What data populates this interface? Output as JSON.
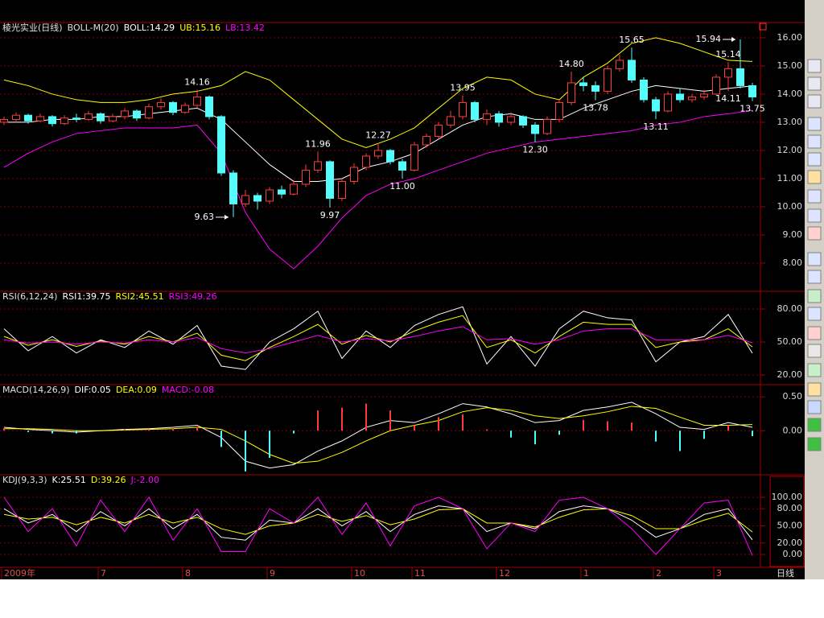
{
  "chart_data": [
    {
      "type": "candlestick",
      "header": [
        "棱光实业(日线)",
        "BOLL-M(20)"
      ],
      "up_color": "#ff3c3c",
      "down_color": "#54fcfc",
      "ohlc": [
        [
          13.0,
          13.2,
          12.9,
          13.1
        ],
        [
          13.1,
          13.35,
          13.0,
          13.25
        ],
        [
          13.25,
          13.3,
          12.95,
          13.05
        ],
        [
          13.05,
          13.3,
          13.0,
          13.2
        ],
        [
          13.2,
          13.25,
          12.85,
          12.95
        ],
        [
          12.95,
          13.25,
          12.9,
          13.15
        ],
        [
          13.15,
          13.3,
          13.0,
          13.1
        ],
        [
          13.1,
          13.4,
          13.05,
          13.3
        ],
        [
          13.3,
          13.35,
          12.95,
          13.05
        ],
        [
          13.05,
          13.3,
          13.0,
          13.2
        ],
        [
          13.2,
          13.5,
          13.1,
          13.4
        ],
        [
          13.4,
          13.45,
          13.05,
          13.15
        ],
        [
          13.15,
          13.65,
          13.1,
          13.55
        ],
        [
          13.55,
          13.85,
          13.45,
          13.7
        ],
        [
          13.7,
          13.75,
          13.25,
          13.35
        ],
        [
          13.35,
          13.7,
          13.3,
          13.6
        ],
        [
          13.6,
          14.16,
          13.5,
          13.9
        ],
        [
          13.9,
          13.95,
          13.1,
          13.2
        ],
        [
          13.2,
          13.25,
          11.1,
          11.2
        ],
        [
          11.2,
          11.3,
          9.63,
          10.1
        ],
        [
          10.1,
          10.6,
          10.0,
          10.4
        ],
        [
          10.4,
          10.5,
          9.9,
          10.2
        ],
        [
          10.2,
          10.7,
          10.1,
          10.6
        ],
        [
          10.6,
          10.75,
          10.3,
          10.45
        ],
        [
          10.45,
          10.95,
          10.4,
          10.8
        ],
        [
          10.8,
          11.5,
          10.7,
          11.3
        ],
        [
          11.3,
          11.96,
          11.2,
          11.6
        ],
        [
          11.6,
          11.65,
          9.97,
          10.3
        ],
        [
          10.3,
          11.0,
          10.2,
          10.9
        ],
        [
          10.9,
          11.55,
          10.8,
          11.4
        ],
        [
          11.4,
          11.9,
          11.3,
          11.8
        ],
        [
          11.8,
          12.27,
          11.7,
          12.0
        ],
        [
          12.0,
          12.05,
          11.5,
          11.6
        ],
        [
          11.6,
          11.7,
          11.0,
          11.3
        ],
        [
          11.3,
          12.3,
          11.25,
          12.2
        ],
        [
          12.2,
          12.6,
          12.1,
          12.5
        ],
        [
          12.5,
          13.0,
          12.4,
          12.9
        ],
        [
          12.9,
          13.4,
          12.8,
          13.2
        ],
        [
          13.2,
          13.95,
          13.1,
          13.7
        ],
        [
          13.7,
          13.75,
          13.0,
          13.1
        ],
        [
          13.1,
          13.45,
          12.9,
          13.3
        ],
        [
          13.3,
          13.4,
          12.85,
          13.0
        ],
        [
          13.0,
          13.35,
          12.9,
          13.2
        ],
        [
          13.2,
          13.25,
          12.8,
          12.9
        ],
        [
          12.9,
          13.0,
          12.3,
          12.6
        ],
        [
          12.6,
          13.2,
          12.55,
          13.1
        ],
        [
          13.1,
          13.8,
          13.0,
          13.7
        ],
        [
          13.7,
          14.8,
          13.6,
          14.4
        ],
        [
          14.4,
          14.6,
          14.1,
          14.3
        ],
        [
          14.3,
          14.45,
          13.78,
          14.1
        ],
        [
          14.1,
          15.0,
          14.0,
          14.9
        ],
        [
          14.9,
          15.4,
          14.8,
          15.2
        ],
        [
          15.2,
          15.65,
          14.4,
          14.5
        ],
        [
          14.5,
          14.6,
          13.7,
          13.8
        ],
        [
          13.8,
          13.9,
          13.11,
          13.4
        ],
        [
          13.4,
          14.1,
          13.35,
          14.0
        ],
        [
          14.0,
          14.2,
          13.7,
          13.8
        ],
        [
          13.8,
          14.0,
          13.7,
          13.9
        ],
        [
          13.9,
          14.15,
          13.8,
          14.0
        ],
        [
          14.0,
          14.7,
          13.95,
          14.6
        ],
        [
          14.6,
          15.14,
          14.11,
          14.9
        ],
        [
          14.9,
          15.94,
          14.2,
          14.3
        ],
        [
          14.3,
          14.4,
          13.75,
          13.9
        ]
      ],
      "x": [
        0,
        2,
        4,
        6,
        8,
        10,
        12,
        14,
        16,
        18,
        20,
        22,
        24,
        26,
        28,
        30,
        32,
        34,
        36,
        38,
        40,
        42,
        44,
        46,
        48,
        50,
        52,
        54,
        56,
        58,
        60,
        62
      ],
      "series": [
        {
          "label": "BOLL:14.29",
          "color": "#ffffff",
          "style": "line",
          "values": [
            13.0,
            13.0,
            13.1,
            13.1,
            13.2,
            13.2,
            13.3,
            13.4,
            13.5,
            13.1,
            12.3,
            11.5,
            10.9,
            10.9,
            11.0,
            11.4,
            11.6,
            11.9,
            12.4,
            12.9,
            13.2,
            13.3,
            13.1,
            13.1,
            13.5,
            13.8,
            14.1,
            14.3,
            14.2,
            14.1,
            14.2,
            14.29
          ]
        },
        {
          "label": "UB:15.16",
          "color": "#ffff00",
          "style": "line",
          "values": [
            14.5,
            14.3,
            14.0,
            13.8,
            13.7,
            13.7,
            13.8,
            14.0,
            14.1,
            14.3,
            14.8,
            14.5,
            13.8,
            13.1,
            12.4,
            12.1,
            12.4,
            12.8,
            13.5,
            14.2,
            14.6,
            14.5,
            14.0,
            13.8,
            14.6,
            15.1,
            15.8,
            16.0,
            15.8,
            15.5,
            15.2,
            15.16
          ]
        },
        {
          "label": "LB:13.42",
          "color": "#ff00ff",
          "style": "line",
          "values": [
            11.4,
            11.9,
            12.3,
            12.6,
            12.7,
            12.8,
            12.8,
            12.8,
            12.9,
            11.9,
            9.8,
            8.5,
            7.8,
            8.6,
            9.6,
            10.4,
            10.8,
            11.0,
            11.3,
            11.6,
            11.9,
            12.1,
            12.3,
            12.4,
            12.5,
            12.6,
            12.7,
            12.9,
            13.0,
            13.2,
            13.3,
            13.42
          ]
        }
      ],
      "annotations": [
        {
          "label": "14.16",
          "value": 14.16,
          "index": 16
        },
        {
          "label": "9.63",
          "value": 9.63,
          "index": 19,
          "arrow": true
        },
        {
          "label": "11.96",
          "value": 11.96,
          "index": 26
        },
        {
          "label": "9.97",
          "value": 9.97,
          "index": 27
        },
        {
          "label": "12.27",
          "value": 12.27,
          "index": 31
        },
        {
          "label": "11.00",
          "value": 11.0,
          "index": 33
        },
        {
          "label": "13.95",
          "value": 13.95,
          "index": 38
        },
        {
          "label": "12.30",
          "value": 12.3,
          "index": 44
        },
        {
          "label": "14.80",
          "value": 14.8,
          "index": 47
        },
        {
          "label": "13.78",
          "value": 13.78,
          "index": 49
        },
        {
          "label": "15.65",
          "value": 15.65,
          "index": 52
        },
        {
          "label": "13.11",
          "value": 13.11,
          "index": 54
        },
        {
          "label": "15.14",
          "value": 15.14,
          "index": 60
        },
        {
          "label": "14.11",
          "value": 14.11,
          "index": 60
        },
        {
          "label": "15.94",
          "value": 15.94,
          "index": 61,
          "arrow": true
        },
        {
          "label": "13.75",
          "value": 13.75,
          "index": 62
        }
      ],
      "ylim": [
        7.0,
        16.54
      ],
      "yticks": [
        {
          "value": 8,
          "label": "8.00"
        },
        {
          "value": 9,
          "label": "9.00"
        },
        {
          "value": 10,
          "label": "10.00"
        },
        {
          "value": 11,
          "label": "11.00"
        },
        {
          "value": 12,
          "label": "12.00"
        },
        {
          "value": 13,
          "label": "13.00"
        },
        {
          "value": 14,
          "label": "14.00"
        },
        {
          "value": 15,
          "label": "15.00"
        },
        {
          "value": 16,
          "label": "16.00"
        }
      ],
      "grid": true
    },
    {
      "type": "line",
      "header": [
        "RSI(6,12,24)"
      ],
      "x": [
        0,
        2,
        4,
        6,
        8,
        10,
        12,
        14,
        16,
        18,
        20,
        22,
        24,
        26,
        28,
        30,
        32,
        34,
        36,
        38,
        40,
        42,
        44,
        46,
        48,
        50,
        52,
        54,
        56,
        58,
        60,
        62
      ],
      "series": [
        {
          "label": "RSI1:39.75",
          "color": "#ffffff",
          "style": "line",
          "values": [
            62,
            42,
            55,
            40,
            52,
            45,
            60,
            48,
            65,
            28,
            25,
            50,
            62,
            78,
            35,
            60,
            45,
            65,
            75,
            82,
            30,
            55,
            28,
            62,
            78,
            72,
            70,
            32,
            50,
            55,
            75,
            39.75
          ]
        },
        {
          "label": "RSI2:45.51",
          "color": "#ffff00",
          "style": "line",
          "values": [
            55,
            47,
            52,
            46,
            51,
            48,
            55,
            50,
            58,
            38,
            33,
            45,
            55,
            66,
            48,
            56,
            50,
            60,
            68,
            74,
            45,
            52,
            40,
            55,
            68,
            66,
            66,
            45,
            50,
            52,
            62,
            45.51
          ]
        },
        {
          "label": "RSI3:49.26",
          "color": "#ff00ff",
          "style": "line",
          "values": [
            52,
            49,
            50,
            48,
            50,
            49,
            52,
            50,
            54,
            44,
            40,
            44,
            50,
            56,
            50,
            53,
            51,
            55,
            60,
            64,
            52,
            53,
            48,
            52,
            60,
            62,
            62,
            52,
            52,
            52,
            56,
            49.26
          ]
        }
      ],
      "ylim": [
        11.2,
        96.1
      ],
      "yticks": [
        {
          "value": 20,
          "label": "20.00"
        },
        {
          "value": 50,
          "label": "50.00"
        },
        {
          "value": 80,
          "label": "80.00"
        }
      ],
      "grid": true
    },
    {
      "type": "line",
      "header": [
        "MACD(14,26,9)"
      ],
      "x": [
        0,
        2,
        4,
        6,
        8,
        10,
        12,
        14,
        16,
        18,
        20,
        22,
        24,
        26,
        28,
        30,
        32,
        34,
        36,
        38,
        40,
        42,
        44,
        46,
        48,
        50,
        52,
        54,
        56,
        58,
        60,
        62
      ],
      "series": [
        {
          "label": "DIF:0.05",
          "color": "#ffffff",
          "style": "line",
          "values": [
            0.05,
            0.02,
            0.0,
            -0.02,
            0.0,
            0.02,
            0.03,
            0.05,
            0.08,
            -0.1,
            -0.45,
            -0.55,
            -0.5,
            -0.3,
            -0.15,
            0.05,
            0.15,
            0.12,
            0.25,
            0.4,
            0.35,
            0.25,
            0.12,
            0.15,
            0.3,
            0.35,
            0.42,
            0.25,
            0.05,
            0.02,
            0.12,
            0.05
          ]
        },
        {
          "label": "DEA:0.09",
          "color": "#ffff00",
          "style": "line",
          "values": [
            0.03,
            0.03,
            0.02,
            0.0,
            0.0,
            0.01,
            0.02,
            0.03,
            0.05,
            0.02,
            -0.15,
            -0.35,
            -0.48,
            -0.45,
            -0.32,
            -0.15,
            0.0,
            0.08,
            0.15,
            0.28,
            0.34,
            0.3,
            0.22,
            0.18,
            0.22,
            0.28,
            0.36,
            0.33,
            0.2,
            0.08,
            0.08,
            0.09
          ]
        },
        {
          "label": "MACD:-0.08",
          "color": "#ff00ff",
          "style": "bar",
          "bar_color": "#ff3c3c",
          "negative_color": "#54fcfc",
          "values": [
            0.04,
            -0.02,
            -0.04,
            -0.04,
            0.0,
            0.02,
            0.02,
            0.04,
            0.06,
            -0.24,
            -0.6,
            -0.4,
            -0.04,
            0.3,
            0.34,
            0.4,
            0.3,
            0.08,
            0.2,
            0.24,
            0.02,
            -0.1,
            -0.2,
            -0.06,
            0.16,
            0.14,
            0.12,
            -0.16,
            -0.3,
            -0.12,
            0.08,
            -0.08
          ]
        }
      ],
      "ylim": [
        -0.65,
        0.68
      ],
      "yticks": [
        {
          "value": 0,
          "label": "0.00"
        },
        {
          "value": 0.5,
          "label": "0.50"
        }
      ],
      "grid": true
    },
    {
      "type": "line",
      "header": [
        "KDJ(9,3,3)"
      ],
      "x": [
        0,
        2,
        4,
        6,
        8,
        10,
        12,
        14,
        16,
        18,
        20,
        22,
        24,
        26,
        28,
        30,
        32,
        34,
        36,
        38,
        40,
        42,
        44,
        46,
        48,
        50,
        52,
        54,
        56,
        58,
        60,
        62
      ],
      "series": [
        {
          "label": "K:25.51",
          "color": "#ffffff",
          "style": "line",
          "values": [
            80,
            55,
            70,
            40,
            75,
            50,
            80,
            45,
            70,
            30,
            25,
            60,
            55,
            80,
            50,
            75,
            40,
            70,
            85,
            80,
            40,
            55,
            45,
            75,
            85,
            80,
            60,
            30,
            45,
            70,
            80,
            25.51
          ]
        },
        {
          "label": "D:39.26",
          "color": "#ffff00",
          "style": "line",
          "values": [
            70,
            62,
            65,
            52,
            65,
            55,
            70,
            55,
            65,
            45,
            35,
            50,
            55,
            70,
            58,
            68,
            52,
            62,
            78,
            80,
            55,
            55,
            48,
            65,
            78,
            80,
            68,
            45,
            45,
            60,
            72,
            39.26
          ]
        },
        {
          "label": "J:-2.00",
          "color": "#ff00ff",
          "style": "line",
          "values": [
            100,
            40,
            80,
            15,
            95,
            40,
            100,
            25,
            80,
            5,
            5,
            80,
            55,
            100,
            35,
            90,
            15,
            85,
            100,
            80,
            10,
            55,
            40,
            95,
            100,
            80,
            45,
            0,
            45,
            90,
            95,
            -2.0
          ]
        }
      ],
      "ylim": [
        -22.5,
        139.4
      ],
      "yticks": [
        {
          "value": 0,
          "label": "0.00"
        },
        {
          "value": 20,
          "label": "20.00"
        },
        {
          "value": 50,
          "label": "50.00"
        },
        {
          "value": 80,
          "label": "80.00"
        },
        {
          "value": 100,
          "label": "100.00"
        }
      ],
      "grid": true,
      "xticks": [
        {
          "value": 0,
          "label": "2009年"
        },
        {
          "value": 8,
          "label": "7"
        },
        {
          "value": 15,
          "label": "8"
        },
        {
          "value": 22,
          "label": "9"
        },
        {
          "value": 29,
          "label": "10"
        },
        {
          "value": 34,
          "label": "11"
        },
        {
          "value": 41,
          "label": "12"
        },
        {
          "value": 48,
          "label": "1"
        },
        {
          "value": 54,
          "label": "2"
        },
        {
          "value": 59,
          "label": "3"
        }
      ],
      "period_label": "日线"
    }
  ]
}
